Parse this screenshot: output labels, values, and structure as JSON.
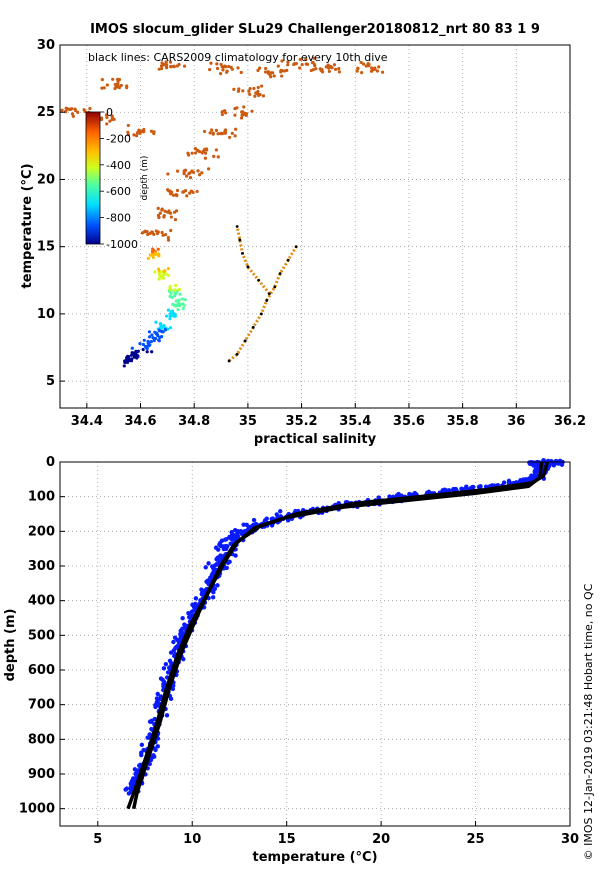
{
  "chart_data": [
    {
      "type": "scatter",
      "title": "IMOS slocum_glider SLu29 Challenger20180812_nrt 80  83   1   9",
      "xlabel": "practical salinity",
      "ylabel": "temperature (°C)",
      "xlim": [
        34.3,
        36.2
      ],
      "ylim": [
        3,
        30
      ],
      "xticks": [
        "34.4",
        "34.6",
        "34.8",
        "35",
        "35.2",
        "35.4",
        "35.6",
        "35.8",
        "36",
        "36.2"
      ],
      "yticks": [
        "5",
        "10",
        "15",
        "20",
        "25",
        "30"
      ],
      "annotation": "black lines: CARS2009 climatology for every 10th dive",
      "grid": true,
      "colorbar": {
        "label": "depth (m)",
        "ticks": [
          "0",
          "-200",
          "-400",
          "-600",
          "-800",
          "-1000"
        ],
        "range": [
          -1000,
          0
        ],
        "position": "top-left"
      },
      "series": [
        {
          "points": [
            [
              34.55,
              6.5
            ],
            [
              34.58,
              7.0
            ],
            [
              34.62,
              7.6
            ],
            [
              34.66,
              8.4
            ],
            [
              34.68,
              9.0
            ],
            [
              34.72,
              9.8
            ],
            [
              34.74,
              10.8
            ],
            [
              34.72,
              11.8
            ],
            [
              34.68,
              13.0
            ],
            [
              34.65,
              14.5
            ],
            [
              34.66,
              16.0
            ],
            [
              34.7,
              17.5
            ],
            [
              34.74,
              19.0
            ],
            [
              34.78,
              20.5
            ],
            [
              34.84,
              22.0
            ],
            [
              34.9,
              23.5
            ],
            [
              34.96,
              25.0
            ],
            [
              35.02,
              26.5
            ],
            [
              35.1,
              28.0
            ],
            [
              35.2,
              28.6
            ],
            [
              34.6,
              23.5
            ],
            [
              34.45,
              24.5
            ],
            [
              34.35,
              25.0
            ],
            [
              34.5,
              27.0
            ],
            [
              34.7,
              28.5
            ],
            [
              34.9,
              28.2
            ],
            [
              35.3,
              28.3
            ],
            [
              35.45,
              28.3
            ]
          ]
        }
      ],
      "climatology": [
        {
          "points": [
            [
              34.93,
              6.5
            ],
            [
              34.96,
              7.0
            ],
            [
              34.99,
              8.0
            ],
            [
              35.02,
              9.0
            ],
            [
              35.05,
              10.0
            ],
            [
              35.07,
              11.0
            ],
            [
              35.1,
              12.0
            ],
            [
              35.12,
              13.0
            ],
            [
              35.15,
              14.0
            ],
            [
              35.18,
              15.0
            ]
          ]
        },
        {
          "points": [
            [
              35.08,
              11.5
            ],
            [
              35.04,
              12.5
            ],
            [
              35.0,
              13.5
            ],
            [
              34.98,
              14.5
            ],
            [
              34.97,
              15.5
            ],
            [
              34.96,
              16.5
            ]
          ]
        }
      ]
    },
    {
      "type": "scatter",
      "xlabel": "temperature (°C)",
      "ylabel": "depth (m)",
      "xlim": [
        3,
        30
      ],
      "ylim": [
        1050,
        0
      ],
      "xticks": [
        "5",
        "10",
        "15",
        "20",
        "25",
        "30"
      ],
      "yticks": [
        "0",
        "100",
        "200",
        "300",
        "400",
        "500",
        "600",
        "700",
        "800",
        "900",
        "1000"
      ],
      "grid": true,
      "series": [
        {
          "points": [
            [
              6.8,
              950
            ],
            [
              7.3,
              900
            ],
            [
              7.9,
              800
            ],
            [
              8.4,
              700
            ],
            [
              8.9,
              600
            ],
            [
              9.5,
              500
            ],
            [
              10.3,
              420
            ],
            [
              11.0,
              350
            ],
            [
              11.6,
              280
            ],
            [
              12.2,
              220
            ],
            [
              13.5,
              180
            ],
            [
              15.5,
              150
            ],
            [
              18.0,
              125
            ],
            [
              21.0,
              105
            ],
            [
              24.0,
              85
            ],
            [
              27.0,
              65
            ],
            [
              28.0,
              50
            ],
            [
              28.5,
              20
            ],
            [
              28.2,
              5
            ],
            [
              29.5,
              0
            ]
          ]
        }
      ],
      "climatology": [
        {
          "points": [
            [
              6.9,
              1000
            ],
            [
              7.1,
              950
            ],
            [
              7.7,
              850
            ],
            [
              8.3,
              750
            ],
            [
              8.8,
              650
            ],
            [
              9.5,
              540
            ],
            [
              10.3,
              440
            ],
            [
              11.0,
              360
            ],
            [
              11.7,
              290
            ],
            [
              12.4,
              230
            ],
            [
              13.6,
              185
            ],
            [
              15.5,
              150
            ],
            [
              18.5,
              120
            ],
            [
              22.0,
              100
            ],
            [
              25.5,
              80
            ],
            [
              28.0,
              60
            ],
            [
              28.6,
              40
            ],
            [
              28.8,
              0
            ]
          ]
        },
        {
          "points": [
            [
              6.6,
              1000
            ],
            [
              7.0,
              940
            ],
            [
              7.5,
              860
            ],
            [
              8.1,
              760
            ],
            [
              8.6,
              660
            ],
            [
              9.2,
              560
            ],
            [
              9.9,
              470
            ],
            [
              10.8,
              380
            ],
            [
              11.5,
              300
            ],
            [
              12.2,
              240
            ],
            [
              13.3,
              190
            ],
            [
              15.0,
              160
            ],
            [
              18.0,
              130
            ],
            [
              21.5,
              110
            ],
            [
              25.0,
              90
            ],
            [
              27.8,
              70
            ],
            [
              28.4,
              45
            ],
            [
              28.5,
              0
            ]
          ]
        }
      ]
    }
  ],
  "side_note": "© IMOS 12-Jan-2019 03:21:48 Hobart time, no QC",
  "colors": {
    "depth_colormap": [
      "#00008f",
      "#0050ff",
      "#00dfff",
      "#50ff9f",
      "#cfff20",
      "#ffbf00",
      "#ff6000",
      "#8f0000"
    ],
    "ts_points": "#cc5a10",
    "profile_points": "#0a1aff",
    "climatology": "#000000"
  }
}
